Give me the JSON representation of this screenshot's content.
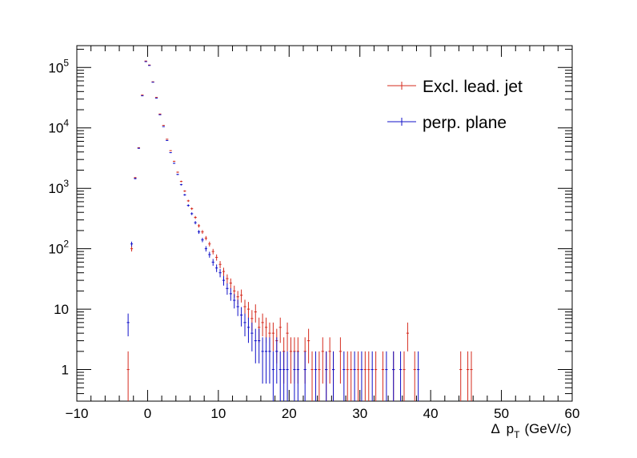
{
  "chart_data": {
    "type": "scatter",
    "title": "",
    "xlabel_delta": "Δ",
    "xlabel_p": "p",
    "xlabel_sub": "T",
    "xlabel_unit": "(GeV/c)",
    "ylabel": "",
    "xlim": [
      -10,
      60
    ],
    "ylim": [
      0.3,
      230000
    ],
    "y_scale": "log",
    "grid": false,
    "legend_position": "top-right",
    "x_ticks": [
      "−10",
      "0",
      "10",
      "20",
      "30",
      "40",
      "50",
      "60"
    ],
    "y_ticks": [
      {
        "base": "1",
        "exp": ""
      },
      {
        "base": "10",
        "exp": ""
      },
      {
        "base": "10",
        "exp": "2"
      },
      {
        "base": "10",
        "exp": "3"
      },
      {
        "base": "10",
        "exp": "4"
      },
      {
        "base": "10",
        "exp": "5"
      }
    ],
    "series": [
      {
        "name": "Excl. lead. jet",
        "color": "#d52b1e",
        "x": [
          -2.75,
          -2.25,
          -1.75,
          -1.25,
          -0.75,
          -0.25,
          0.25,
          0.75,
          1.25,
          1.75,
          2.25,
          2.75,
          3.25,
          3.75,
          4.25,
          4.75,
          5.25,
          5.75,
          6.25,
          6.75,
          7.25,
          7.75,
          8.25,
          8.75,
          9.25,
          9.75,
          10.25,
          10.75,
          11.25,
          11.75,
          12.25,
          12.75,
          13.25,
          13.75,
          14.25,
          14.75,
          15.25,
          15.75,
          16.25,
          16.75,
          17.25,
          17.75,
          18.25,
          18.75,
          19.25,
          19.75,
          20.25,
          20.75,
          21.25,
          22.25,
          22.75,
          23.25,
          24.25,
          24.75,
          25.25,
          25.75,
          26.25,
          27.25,
          28.25,
          28.75,
          29.75,
          30.75,
          31.25,
          32.25,
          33.25,
          34.75,
          36.25,
          36.75,
          37.75,
          44.25,
          45.25,
          45.75
        ],
        "y": [
          1,
          100,
          1500,
          4700,
          35000,
          128000,
          110000,
          58000,
          32000,
          17000,
          11000,
          6500,
          4200,
          2800,
          1850,
          1300,
          900,
          620,
          460,
          330,
          240,
          190,
          150,
          120,
          90,
          72,
          55,
          42,
          32,
          27,
          20,
          16,
          17,
          11,
          10,
          7,
          9,
          5,
          6,
          5,
          4,
          4,
          3,
          5,
          2,
          4,
          2,
          2,
          2,
          2,
          3,
          1,
          1,
          2,
          1,
          2,
          1,
          2,
          1,
          1,
          1,
          1,
          1,
          1,
          1,
          1,
          1,
          4,
          1,
          1,
          1,
          1
        ]
      },
      {
        "name": "perp. plane",
        "color": "#1010c8",
        "x": [
          -2.75,
          -2.25,
          -1.75,
          -1.25,
          -0.75,
          -0.25,
          0.25,
          0.75,
          1.25,
          1.75,
          2.25,
          2.75,
          3.25,
          3.75,
          4.25,
          4.75,
          5.25,
          5.75,
          6.25,
          6.75,
          7.25,
          7.75,
          8.25,
          8.75,
          9.25,
          9.75,
          10.25,
          10.75,
          11.25,
          11.75,
          12.25,
          12.75,
          13.25,
          13.75,
          14.25,
          14.75,
          15.25,
          15.75,
          16.25,
          16.75,
          17.25,
          17.75,
          18.25,
          18.75,
          19.25,
          19.75,
          20.75,
          21.25,
          22.25,
          23.75,
          25.25,
          26.25,
          27.75,
          29.25,
          30.25,
          31.75,
          33.75,
          34.75,
          35.75,
          38.25
        ],
        "y": [
          6,
          120,
          1450,
          4600,
          34000,
          125000,
          108000,
          57000,
          31000,
          16500,
          10500,
          6200,
          3900,
          2600,
          1700,
          1150,
          780,
          520,
          380,
          270,
          190,
          140,
          100,
          80,
          60,
          48,
          40,
          30,
          22,
          18,
          14,
          11,
          8,
          6,
          5,
          4,
          3,
          3,
          2,
          2,
          2,
          1,
          2,
          1,
          1,
          1,
          1,
          1,
          1,
          1,
          1,
          1,
          1,
          1,
          1,
          1,
          1,
          1,
          1,
          1
        ]
      }
    ]
  }
}
